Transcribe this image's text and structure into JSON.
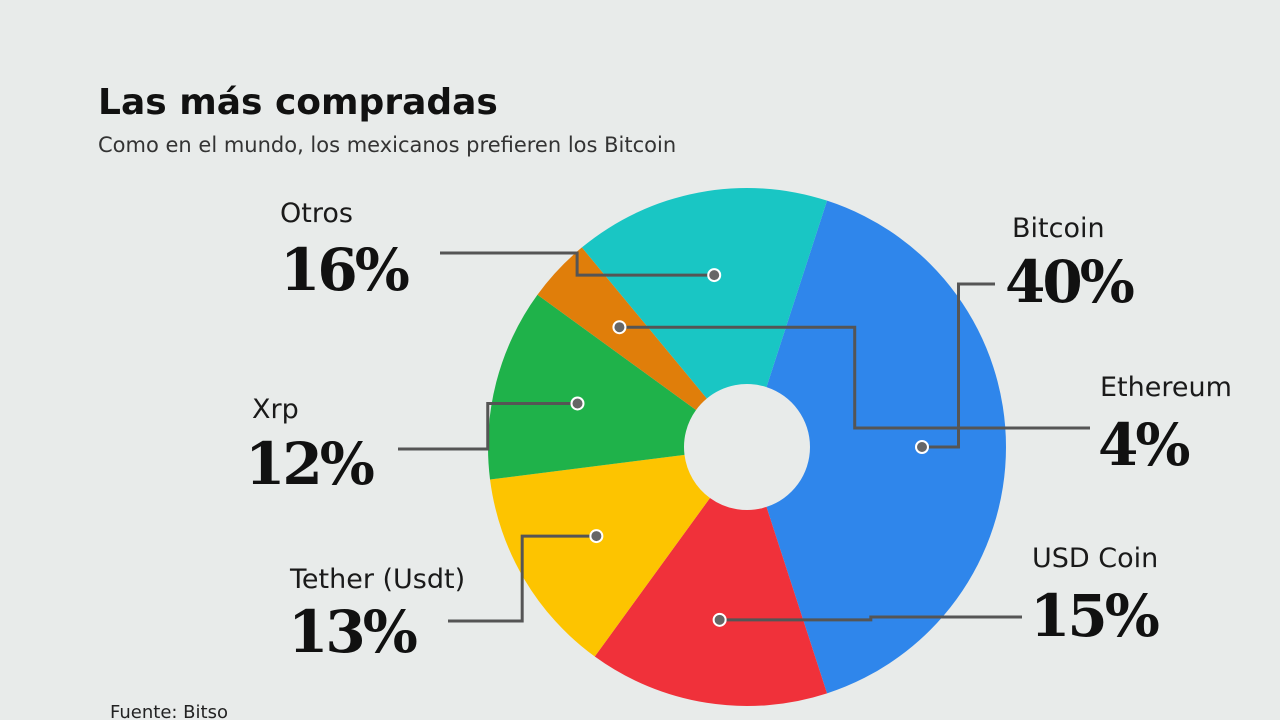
{
  "chart_data": {
    "type": "pie",
    "title": "Las más compradas",
    "subtitle": "Como en el mundo, los mexicanos prefieren los Bitcoin",
    "source": "Fuente: Bitso",
    "categories": [
      "Bitcoin",
      "USD Coin",
      "Tether (Usdt)",
      "Xrp",
      "Ethereum",
      "Otros"
    ],
    "values": [
      40,
      15,
      13,
      12,
      4,
      16
    ],
    "value_labels": [
      "40%",
      "15%",
      "13%",
      "12%",
      "4%",
      "16%"
    ],
    "colors": [
      "#2f86eb",
      "#f0313a",
      "#fdc400",
      "#1fb24a",
      "#e07e0a",
      "#19c6c4"
    ]
  }
}
